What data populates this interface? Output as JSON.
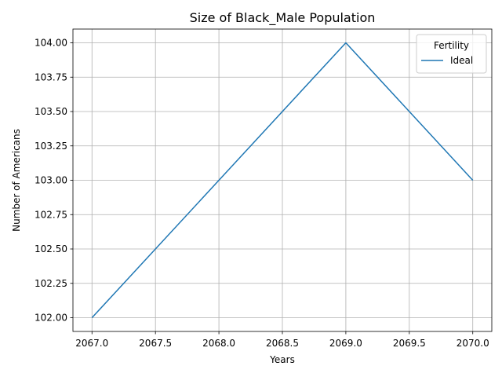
{
  "chart_data": {
    "type": "line",
    "title": "Size of Black_Male Population",
    "xlabel": "Years",
    "ylabel": "Number of Americans",
    "x": [
      2067,
      2068,
      2069,
      2070
    ],
    "series": [
      {
        "name": "Ideal",
        "values": [
          102,
          103,
          104,
          103
        ],
        "color": "#1f77b4"
      }
    ],
    "xlim": [
      2066.85,
      2070.15
    ],
    "ylim": [
      101.9,
      104.1
    ],
    "xticks": [
      2067.0,
      2067.5,
      2068.0,
      2068.5,
      2069.0,
      2069.5,
      2070.0
    ],
    "xtick_labels": [
      "2067.0",
      "2067.5",
      "2068.0",
      "2068.5",
      "2069.0",
      "2069.5",
      "2070.0"
    ],
    "yticks": [
      102.0,
      102.25,
      102.5,
      102.75,
      103.0,
      103.25,
      103.5,
      103.75,
      104.0
    ],
    "ytick_labels": [
      "102.00",
      "102.25",
      "102.50",
      "102.75",
      "103.00",
      "103.25",
      "103.50",
      "103.75",
      "104.00"
    ],
    "grid": true,
    "legend": {
      "title": "Fertility",
      "position": "top-right"
    }
  }
}
